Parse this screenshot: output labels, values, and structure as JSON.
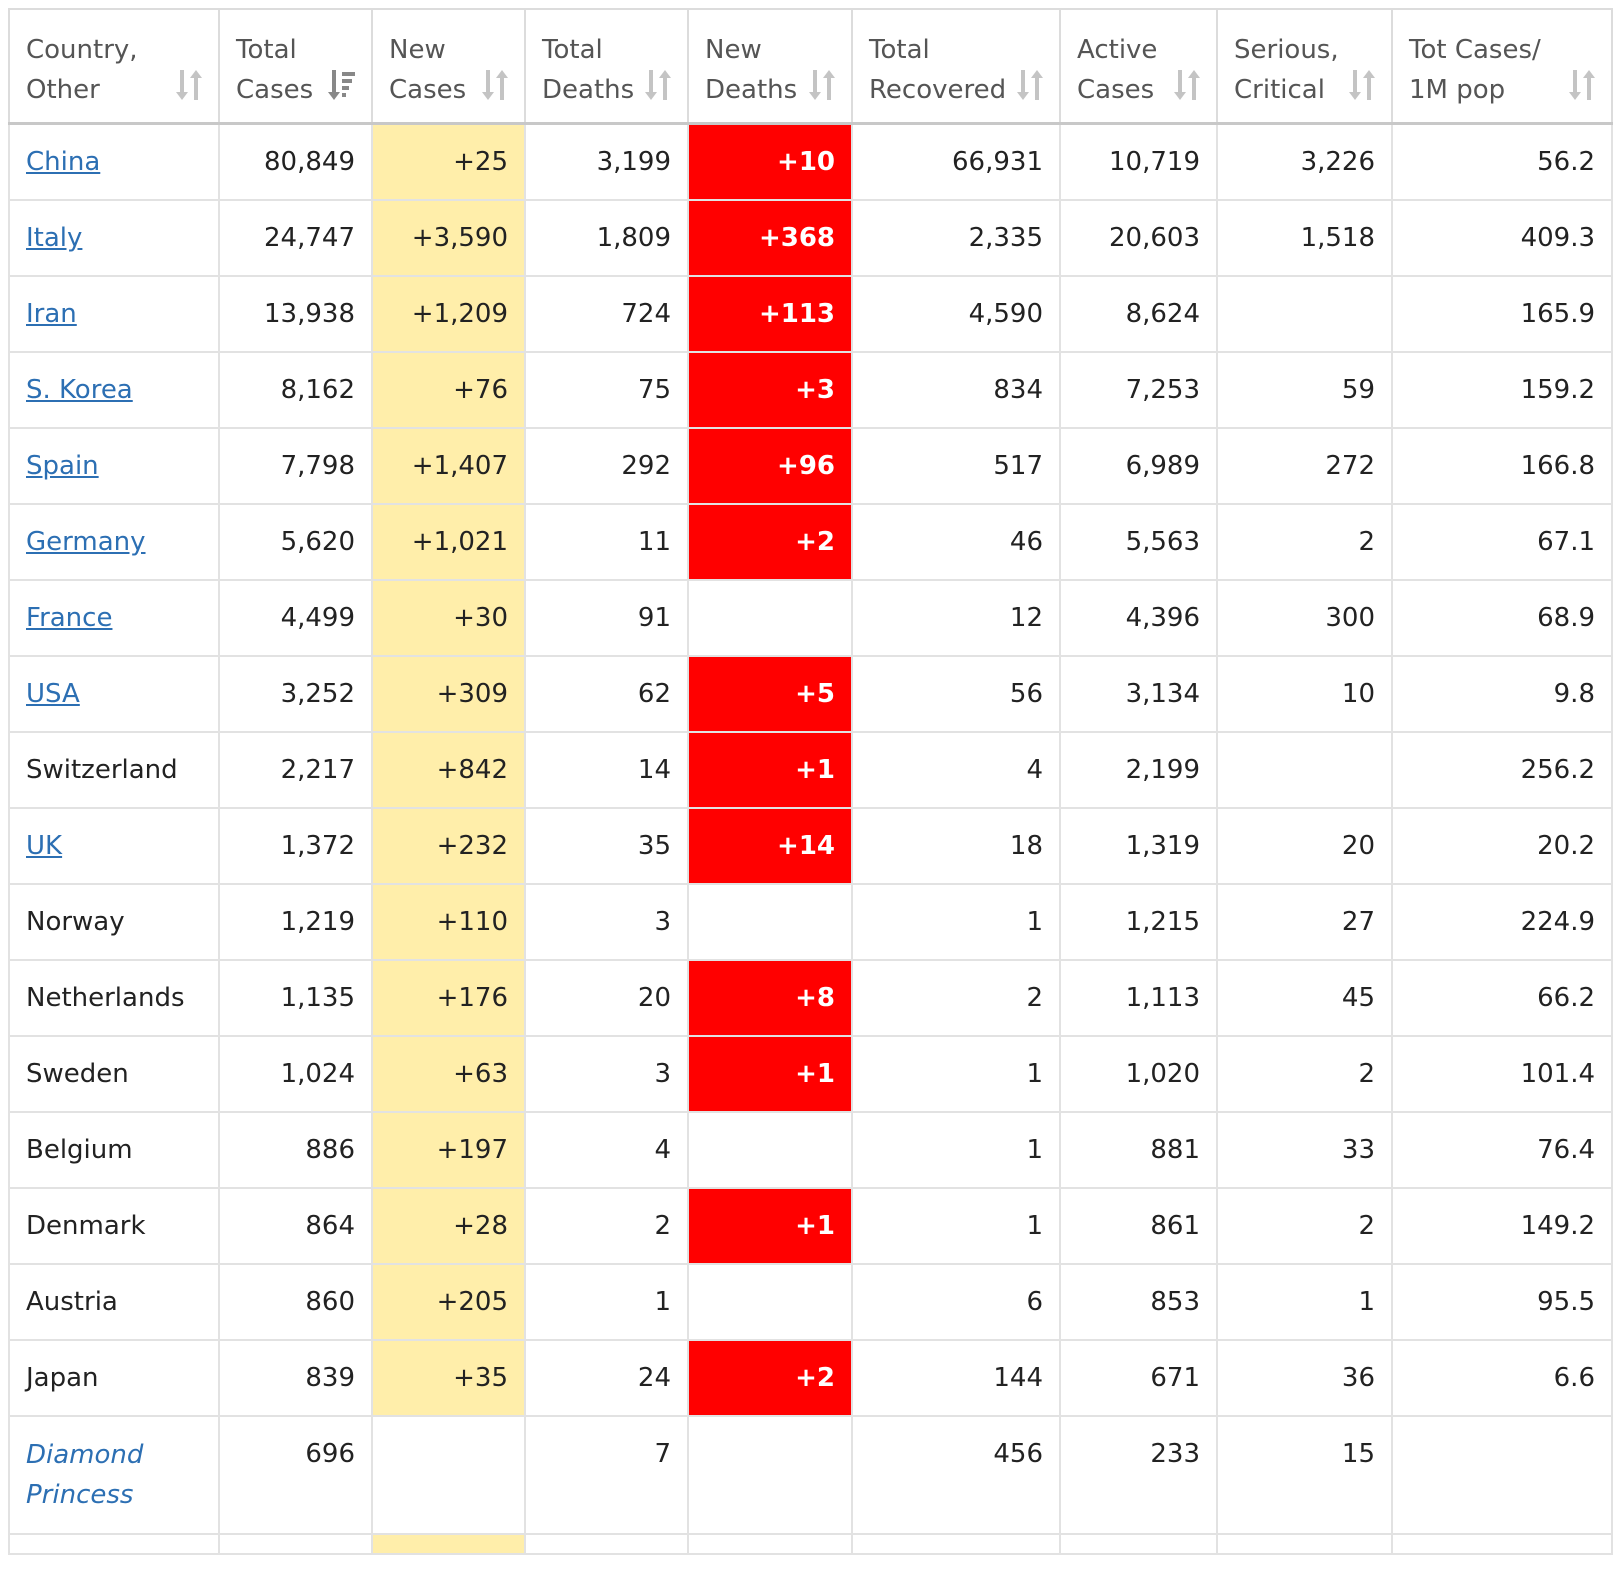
{
  "colors": {
    "new_cases_bg": "#ffeeaa",
    "new_deaths_bg": "#ff0000",
    "link": "#2c6fb3",
    "ship_link": "#00a8e6"
  },
  "table": {
    "headers": [
      {
        "label": "Country, Other",
        "sort_icon": "sort-icon",
        "sorted": false
      },
      {
        "label": "Total Cases",
        "sort_icon": "sort-desc-icon",
        "sorted": true
      },
      {
        "label": "New Cases",
        "sort_icon": "sort-icon",
        "sorted": false
      },
      {
        "label": "Total Deaths",
        "sort_icon": "sort-icon",
        "sorted": false
      },
      {
        "label": "New Deaths",
        "sort_icon": "sort-icon",
        "sorted": false
      },
      {
        "label": "Total Recovered",
        "sort_icon": "sort-icon",
        "sorted": false
      },
      {
        "label": "Active Cases",
        "sort_icon": "sort-icon",
        "sorted": false
      },
      {
        "label": "Serious, Critical",
        "sort_icon": "sort-icon",
        "sorted": false
      },
      {
        "label": "Tot Cases/ 1M pop",
        "sort_icon": "sort-icon",
        "sorted": false
      }
    ],
    "rows": [
      {
        "country": "China",
        "link": true,
        "total_cases": "80,849",
        "new_cases": "+25",
        "total_deaths": "3,199",
        "new_deaths": "+10",
        "total_recovered": "66,931",
        "active_cases": "10,719",
        "serious_critical": "3,226",
        "per_million": "56.2"
      },
      {
        "country": "Italy",
        "link": true,
        "total_cases": "24,747",
        "new_cases": "+3,590",
        "total_deaths": "1,809",
        "new_deaths": "+368",
        "total_recovered": "2,335",
        "active_cases": "20,603",
        "serious_critical": "1,518",
        "per_million": "409.3"
      },
      {
        "country": "Iran",
        "link": true,
        "total_cases": "13,938",
        "new_cases": "+1,209",
        "total_deaths": "724",
        "new_deaths": "+113",
        "total_recovered": "4,590",
        "active_cases": "8,624",
        "serious_critical": "",
        "per_million": "165.9"
      },
      {
        "country": "S. Korea",
        "link": true,
        "total_cases": "8,162",
        "new_cases": "+76",
        "total_deaths": "75",
        "new_deaths": "+3",
        "total_recovered": "834",
        "active_cases": "7,253",
        "serious_critical": "59",
        "per_million": "159.2"
      },
      {
        "country": "Spain",
        "link": true,
        "total_cases": "7,798",
        "new_cases": "+1,407",
        "total_deaths": "292",
        "new_deaths": "+96",
        "total_recovered": "517",
        "active_cases": "6,989",
        "serious_critical": "272",
        "per_million": "166.8"
      },
      {
        "country": "Germany",
        "link": true,
        "total_cases": "5,620",
        "new_cases": "+1,021",
        "total_deaths": "11",
        "new_deaths": "+2",
        "total_recovered": "46",
        "active_cases": "5,563",
        "serious_critical": "2",
        "per_million": "67.1"
      },
      {
        "country": "France",
        "link": true,
        "total_cases": "4,499",
        "new_cases": "+30",
        "total_deaths": "91",
        "new_deaths": "",
        "total_recovered": "12",
        "active_cases": "4,396",
        "serious_critical": "300",
        "per_million": "68.9"
      },
      {
        "country": "USA",
        "link": true,
        "total_cases": "3,252",
        "new_cases": "+309",
        "total_deaths": "62",
        "new_deaths": "+5",
        "total_recovered": "56",
        "active_cases": "3,134",
        "serious_critical": "10",
        "per_million": "9.8"
      },
      {
        "country": "Switzerland",
        "link": false,
        "total_cases": "2,217",
        "new_cases": "+842",
        "total_deaths": "14",
        "new_deaths": "+1",
        "total_recovered": "4",
        "active_cases": "2,199",
        "serious_critical": "",
        "per_million": "256.2"
      },
      {
        "country": "UK",
        "link": true,
        "total_cases": "1,372",
        "new_cases": "+232",
        "total_deaths": "35",
        "new_deaths": "+14",
        "total_recovered": "18",
        "active_cases": "1,319",
        "serious_critical": "20",
        "per_million": "20.2"
      },
      {
        "country": "Norway",
        "link": false,
        "total_cases": "1,219",
        "new_cases": "+110",
        "total_deaths": "3",
        "new_deaths": "",
        "total_recovered": "1",
        "active_cases": "1,215",
        "serious_critical": "27",
        "per_million": "224.9"
      },
      {
        "country": "Netherlands",
        "link": false,
        "total_cases": "1,135",
        "new_cases": "+176",
        "total_deaths": "20",
        "new_deaths": "+8",
        "total_recovered": "2",
        "active_cases": "1,113",
        "serious_critical": "45",
        "per_million": "66.2"
      },
      {
        "country": "Sweden",
        "link": false,
        "total_cases": "1,024",
        "new_cases": "+63",
        "total_deaths": "3",
        "new_deaths": "+1",
        "total_recovered": "1",
        "active_cases": "1,020",
        "serious_critical": "2",
        "per_million": "101.4"
      },
      {
        "country": "Belgium",
        "link": false,
        "total_cases": "886",
        "new_cases": "+197",
        "total_deaths": "4",
        "new_deaths": "",
        "total_recovered": "1",
        "active_cases": "881",
        "serious_critical": "33",
        "per_million": "76.4"
      },
      {
        "country": "Denmark",
        "link": false,
        "total_cases": "864",
        "new_cases": "+28",
        "total_deaths": "2",
        "new_deaths": "+1",
        "total_recovered": "1",
        "active_cases": "861",
        "serious_critical": "2",
        "per_million": "149.2"
      },
      {
        "country": "Austria",
        "link": false,
        "total_cases": "860",
        "new_cases": "+205",
        "total_deaths": "1",
        "new_deaths": "",
        "total_recovered": "6",
        "active_cases": "853",
        "serious_critical": "1",
        "per_million": "95.5"
      },
      {
        "country": "Japan",
        "link": false,
        "total_cases": "839",
        "new_cases": "+35",
        "total_deaths": "24",
        "new_deaths": "+2",
        "total_recovered": "144",
        "active_cases": "671",
        "serious_critical": "36",
        "per_million": "6.6"
      },
      {
        "country": "Diamond Princess",
        "link": true,
        "ship": true,
        "total_cases": "696",
        "new_cases": "",
        "total_deaths": "7",
        "new_deaths": "",
        "total_recovered": "456",
        "active_cases": "233",
        "serious_critical": "15",
        "per_million": ""
      }
    ]
  }
}
